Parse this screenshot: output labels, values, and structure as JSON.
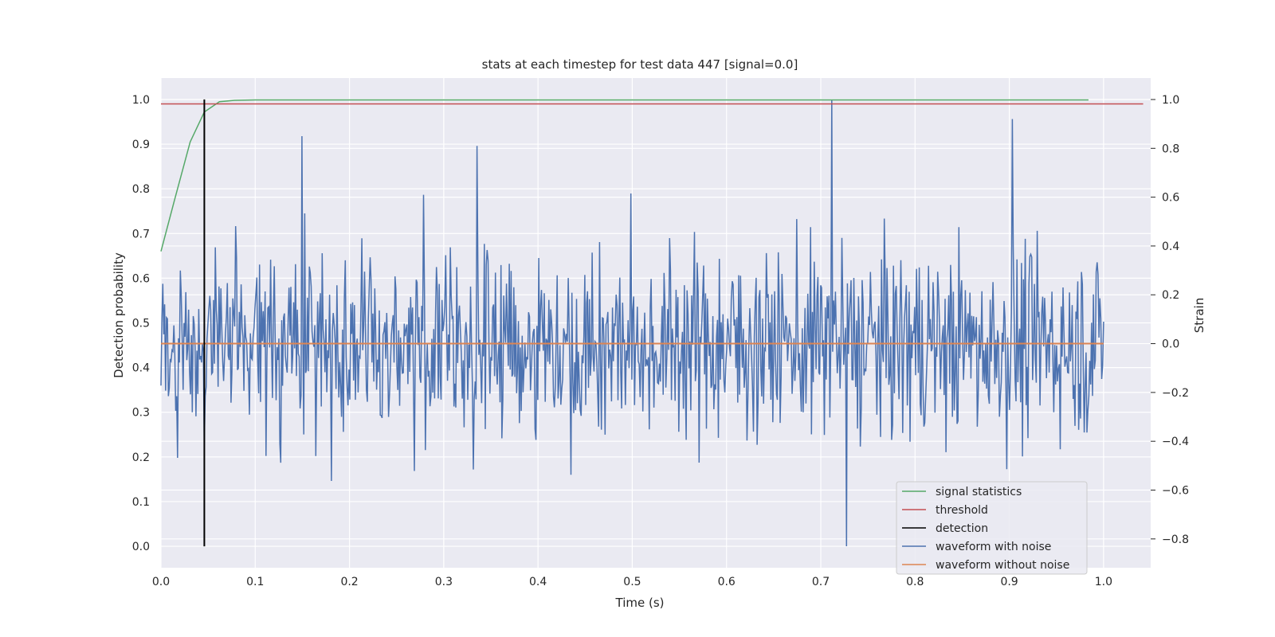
{
  "chart_data": {
    "type": "line",
    "title": "stats at each timestep for test data 447 [signal=0.0]",
    "xlabel": "Time (s)",
    "ylabel": "Detection probability",
    "y2label": "Strain",
    "xlim": [
      0.0,
      1.05
    ],
    "ylim": [
      -0.048,
      1.048
    ],
    "y2lim": [
      -0.918,
      1.088
    ],
    "xticks": [
      "0.0",
      "0.1",
      "0.2",
      "0.3",
      "0.4",
      "0.5",
      "0.6",
      "0.7",
      "0.8",
      "0.9",
      "1.0"
    ],
    "yticks": [
      "0.0",
      "0.1",
      "0.2",
      "0.3",
      "0.4",
      "0.5",
      "0.6",
      "0.7",
      "0.8",
      "0.9",
      "1.0"
    ],
    "y2ticks": [
      "−0.8",
      "−0.6",
      "−0.4",
      "−0.2",
      "0.0",
      "0.2",
      "0.4",
      "0.6",
      "0.8",
      "1.0"
    ],
    "grid": true,
    "legend_position": "bottom-right",
    "colors": {
      "signal_statistics": "#55a868",
      "threshold": "#c44e52",
      "detection": "#000000",
      "waveform_with_noise": "#4c72b0",
      "waveform_without_noise": "#dd8452",
      "plot_background": "#eaeaf2",
      "grid": "#ffffff"
    },
    "series": [
      {
        "name": "signal statistics",
        "axis": "left",
        "x": [
          0.0,
          0.015,
          0.031,
          0.046,
          0.062,
          0.078,
          0.1,
          0.2,
          0.3,
          0.4,
          0.5,
          0.6,
          0.7,
          0.8,
          0.9,
          0.984
        ],
        "y": [
          0.66,
          0.78,
          0.905,
          0.972,
          0.995,
          0.998,
          0.999,
          0.999,
          0.999,
          0.999,
          0.999,
          0.999,
          0.999,
          0.999,
          0.999,
          0.999
        ]
      },
      {
        "name": "threshold",
        "axis": "left",
        "x": [
          0.0,
          1.042
        ],
        "y": [
          0.99,
          0.99
        ]
      },
      {
        "name": "detection",
        "axis": "left",
        "x": [
          0.046,
          0.046
        ],
        "y": [
          0.0,
          1.0
        ]
      },
      {
        "name": "waveform with noise",
        "axis": "right",
        "x_start": 0.0,
        "x_end": 1.0,
        "samples": 1024,
        "approx_range": [
          -0.83,
          1.0
        ],
        "peaks": [
          {
            "x": 0.712,
            "y": 1.0
          },
          {
            "x": 0.727,
            "y": -0.83
          },
          {
            "x": 0.903,
            "y": 0.92
          },
          {
            "x": 0.15,
            "y": 0.85
          },
          {
            "x": 0.335,
            "y": 0.81
          }
        ]
      },
      {
        "name": "waveform without noise",
        "axis": "right",
        "x": [
          0.0,
          1.0
        ],
        "y": [
          0.0,
          0.0
        ]
      }
    ]
  }
}
